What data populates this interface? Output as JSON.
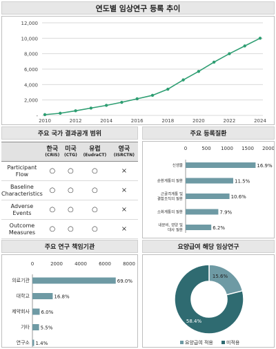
{
  "page_title": "연도별 임상연구 등록 추이",
  "colors": {
    "accent": "#2e9e72",
    "bar": "#6e9aa4",
    "pie_main": "#2f6b71",
    "pie_minor": "#6e9aa4",
    "header_bg": "#e7e7e7"
  },
  "chart_data": [
    {
      "id": "trend",
      "type": "line",
      "title": "연도별 임상연구 등록 추이",
      "x": [
        2010,
        2011,
        2012,
        2013,
        2014,
        2015,
        2016,
        2017,
        2018,
        2019,
        2020,
        2021,
        2022,
        2023,
        2024
      ],
      "series": [
        {
          "values": [
            100,
            280,
            600,
            950,
            1300,
            1700,
            2150,
            2600,
            3400,
            4600,
            5700,
            6900,
            8000,
            9000,
            10000
          ]
        }
      ],
      "x_ticks": [
        "2010",
        "2012",
        "2014",
        "2016",
        "2018",
        "2020",
        "2022",
        "2024"
      ],
      "y_ticks": [
        "-",
        "2,000",
        "4,000",
        "6,000",
        "8,000",
        "10,000",
        "12,000"
      ],
      "ylim": [
        0,
        12000
      ],
      "grid": true
    },
    {
      "id": "diseases",
      "type": "bar",
      "title": "주요 등록질환",
      "categories": [
        "신생물",
        "순환계통의 질환",
        "근골격계통 및 결합조직의 질환",
        "소화계통의 질환",
        "내분비, 영양 및 대사 질환"
      ],
      "category_lines": [
        [
          "신생물"
        ],
        [
          "순환계통의 질환"
        ],
        [
          "근골격계통 및",
          "결합조직의 질환"
        ],
        [
          "소화계통의 질환"
        ],
        [
          "내분비, 영양 및",
          "대사 질환"
        ]
      ],
      "values": [
        1690,
        1150,
        1060,
        790,
        620
      ],
      "labels": [
        "16.9%",
        "11.5%",
        "10.6%",
        "7.9%",
        "6.2%"
      ],
      "x_ticks": [
        "0",
        "500",
        "1000",
        "1500",
        "2000"
      ],
      "xlim": [
        0,
        2000
      ]
    },
    {
      "id": "institutions",
      "type": "bar",
      "title": "주요 연구 책임기관",
      "categories": [
        "의료기관",
        "대학교",
        "제약회사",
        "기타",
        "연구소"
      ],
      "values": [
        6900,
        1680,
        600,
        550,
        140
      ],
      "labels": [
        "69.0%",
        "16.8%",
        "6.0%",
        "5.5%",
        "1.4%"
      ],
      "x_ticks": [
        "0",
        "2000",
        "4000",
        "6000",
        "8000"
      ],
      "xlim": [
        0,
        8000
      ]
    },
    {
      "id": "insurance",
      "type": "pie",
      "title": "요양급여 해당 임상연구",
      "slices": [
        {
          "label": "요양급여 적용",
          "value": 15.6,
          "text": "15.6%"
        },
        {
          "label": "미적용",
          "value": 58.4,
          "text": "58.4%"
        }
      ],
      "legend": [
        "요양급여 적용",
        "미적용"
      ]
    }
  ],
  "disclosure": {
    "title": "주요 국가 결과공개 범위",
    "columns": [
      {
        "name": "한국",
        "abbr": "(CRIS)"
      },
      {
        "name": "미국",
        "abbr": "(CTG)"
      },
      {
        "name": "유럽",
        "abbr": "(EudraCT)"
      },
      {
        "name": "영국",
        "abbr": "(ISRCTN)"
      }
    ],
    "rows": [
      {
        "label": "Participant Flow",
        "marks": [
          "○",
          "○",
          "○",
          "×"
        ]
      },
      {
        "label": "Baseline Characteristics",
        "marks": [
          "○",
          "○",
          "○",
          "×"
        ]
      },
      {
        "label": "Adverse Events",
        "marks": [
          "○",
          "○",
          "○",
          "×"
        ]
      },
      {
        "label": "Outcome Measures",
        "marks": [
          "○",
          "○",
          "○",
          "×"
        ]
      }
    ]
  }
}
